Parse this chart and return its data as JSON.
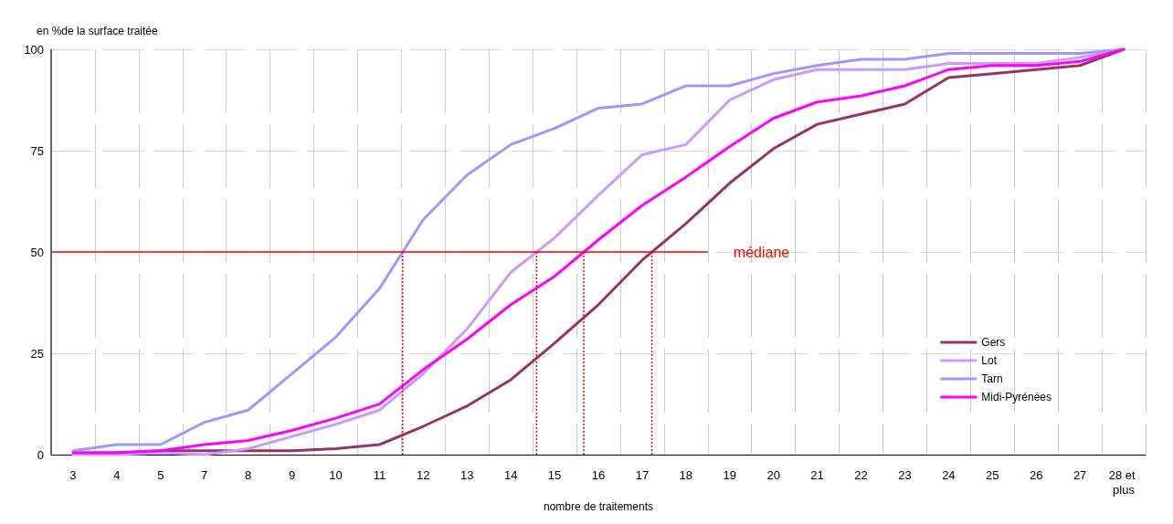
{
  "chart_data": {
    "type": "line",
    "ylabel": "en %de la surface traitée",
    "xlabel": "nombre de traitements",
    "categories": [
      "3",
      "4",
      "5",
      "7",
      "8",
      "9",
      "10",
      "11",
      "12",
      "13",
      "14",
      "15",
      "16",
      "17",
      "18",
      "19",
      "20",
      "21",
      "22",
      "23",
      "24",
      "25",
      "26",
      "27",
      "28 et plus"
    ],
    "series": [
      {
        "name": "Gers",
        "color": "#993366",
        "values": [
          0.5,
          0.5,
          1,
          1,
          1,
          1,
          1.5,
          2.5,
          7,
          12,
          18.5,
          27.5,
          37,
          48,
          57,
          67,
          75.5,
          81.5,
          84,
          86.5,
          93,
          94,
          95,
          96,
          100
        ]
      },
      {
        "name": "Lot",
        "color": "#cc99ff",
        "values": [
          0,
          0,
          0.5,
          0,
          1.5,
          4.5,
          7.5,
          11,
          20,
          31,
          45,
          53.5,
          64,
          74,
          76.5,
          87.5,
          92.5,
          95,
          95,
          95,
          96.5,
          96.5,
          96.5,
          98,
          100
        ]
      },
      {
        "name": "Tarn",
        "color": "#9999ff",
        "values": [
          1,
          2.5,
          2.5,
          8,
          11,
          20,
          29,
          41,
          58,
          69,
          76.5,
          80.5,
          85.5,
          86.5,
          91,
          91,
          94,
          96,
          97.5,
          97.5,
          99,
          99,
          99,
          99,
          100
        ]
      },
      {
        "name": "Midi-Pyrénées",
        "color": "#ff00ff",
        "values": [
          0.5,
          0.5,
          1,
          2.5,
          3.5,
          6,
          9,
          12.5,
          21,
          28.5,
          37,
          44,
          53,
          61.5,
          68.5,
          76,
          83,
          87,
          88.5,
          91,
          95,
          96,
          96,
          97,
          100
        ]
      }
    ],
    "ylim": [
      0,
      100
    ],
    "yticks": [
      0,
      25,
      50,
      75,
      100
    ],
    "ref_lines": [
      {
        "axis": "y",
        "value": 50,
        "label": "médiane",
        "color": "#ff0000",
        "line_style": "solid"
      }
    ],
    "grid": true,
    "legend": "bottom right",
    "marker": "none",
    "line_style": "solid"
  }
}
